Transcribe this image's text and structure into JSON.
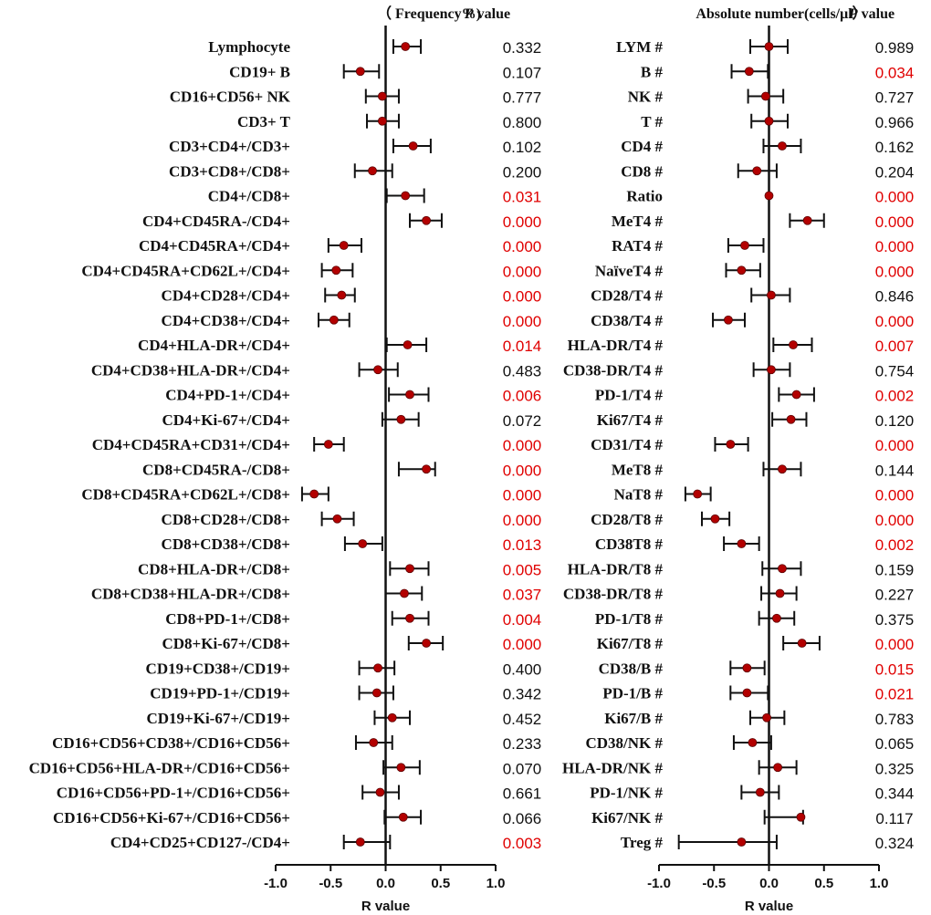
{
  "colors": {
    "point": "#b30000",
    "significant": "#e00000",
    "normal": "#111111",
    "line": "#111111"
  },
  "chart_data": [
    {
      "type": "forest",
      "title": "（ Frequency%)",
      "pvalue_header_p": "P",
      "pvalue_header_rest": " value",
      "xlabel": "R value",
      "xlim": [
        -1.0,
        1.0
      ],
      "ticks": [
        "-1.0",
        "-0.5",
        "0.0",
        "0.5",
        "1.0"
      ],
      "tick_values": [
        -1.0,
        -0.5,
        0.0,
        0.5,
        1.0
      ],
      "rows": [
        {
          "label": "Lymphocyte",
          "r": 0.18,
          "lo": 0.07,
          "hi": 0.32,
          "p": "0.332",
          "sig": false
        },
        {
          "label": "CD19+ B",
          "r": -0.23,
          "lo": -0.38,
          "hi": -0.06,
          "p": "0.107",
          "sig": false
        },
        {
          "label": "CD16+CD56+ NK",
          "r": -0.03,
          "lo": -0.18,
          "hi": 0.12,
          "p": "0.777",
          "sig": false
        },
        {
          "label": "CD3+ T",
          "r": -0.03,
          "lo": -0.17,
          "hi": 0.12,
          "p": "0.800",
          "sig": false
        },
        {
          "label": "CD3+CD4+/CD3+",
          "r": 0.25,
          "lo": 0.07,
          "hi": 0.41,
          "p": "0.102",
          "sig": false
        },
        {
          "label": "CD3+CD8+/CD8+",
          "r": -0.12,
          "lo": -0.28,
          "hi": 0.06,
          "p": "0.200",
          "sig": false
        },
        {
          "label": "CD4+/CD8+",
          "r": 0.18,
          "lo": 0.01,
          "hi": 0.35,
          "p": "0.031",
          "sig": true
        },
        {
          "label": "CD4+CD45RA-/CD4+",
          "r": 0.37,
          "lo": 0.22,
          "hi": 0.51,
          "p": "0.000",
          "sig": true
        },
        {
          "label": "CD4+CD45RA+/CD4+",
          "r": -0.38,
          "lo": -0.52,
          "hi": -0.22,
          "p": "0.000",
          "sig": true
        },
        {
          "label": "CD4+CD45RA+CD62L+/CD4+",
          "r": -0.45,
          "lo": -0.58,
          "hi": -0.3,
          "p": "0.000",
          "sig": true
        },
        {
          "label": "CD4+CD28+/CD4+",
          "r": -0.4,
          "lo": -0.55,
          "hi": -0.28,
          "p": "0.000",
          "sig": true
        },
        {
          "label": "CD4+CD38+/CD4+",
          "r": -0.47,
          "lo": -0.61,
          "hi": -0.33,
          "p": "0.000",
          "sig": true
        },
        {
          "label": "CD4+HLA-DR+/CD4+",
          "r": 0.2,
          "lo": 0.01,
          "hi": 0.37,
          "p": "0.014",
          "sig": true
        },
        {
          "label": "CD4+CD38+HLA-DR+/CD4+",
          "r": -0.07,
          "lo": -0.24,
          "hi": 0.11,
          "p": "0.483",
          "sig": false
        },
        {
          "label": "CD4+PD-1+/CD4+",
          "r": 0.22,
          "lo": 0.03,
          "hi": 0.39,
          "p": "0.006",
          "sig": true
        },
        {
          "label": "CD4+Ki-67+/CD4+",
          "r": 0.14,
          "lo": -0.03,
          "hi": 0.3,
          "p": "0.072",
          "sig": false
        },
        {
          "label": "CD4+CD45RA+CD31+/CD4+",
          "r": -0.52,
          "lo": -0.65,
          "hi": -0.38,
          "p": "0.000",
          "sig": true
        },
        {
          "label": "CD8+CD45RA-/CD8+",
          "r": 0.37,
          "lo": 0.12,
          "hi": 0.45,
          "p": "0.000",
          "sig": true
        },
        {
          "label": "CD8+CD45RA+CD62L+/CD8+",
          "r": -0.65,
          "lo": -0.76,
          "hi": -0.52,
          "p": "0.000",
          "sig": true
        },
        {
          "label": "CD8+CD28+/CD8+",
          "r": -0.44,
          "lo": -0.58,
          "hi": -0.29,
          "p": "0.000",
          "sig": true
        },
        {
          "label": "CD8+CD38+/CD8+",
          "r": -0.21,
          "lo": -0.37,
          "hi": -0.03,
          "p": "0.013",
          "sig": true
        },
        {
          "label": "CD8+HLA-DR+/CD8+",
          "r": 0.22,
          "lo": 0.04,
          "hi": 0.39,
          "p": "0.005",
          "sig": true
        },
        {
          "label": "CD8+CD38+HLA-DR+/CD8+",
          "r": 0.17,
          "lo": 0.0,
          "hi": 0.33,
          "p": "0.037",
          "sig": true
        },
        {
          "label": "CD8+PD-1+/CD8+",
          "r": 0.22,
          "lo": 0.06,
          "hi": 0.39,
          "p": "0.004",
          "sig": true
        },
        {
          "label": "CD8+Ki-67+/CD8+",
          "r": 0.37,
          "lo": 0.21,
          "hi": 0.52,
          "p": "0.000",
          "sig": true
        },
        {
          "label": "CD19+CD38+/CD19+",
          "r": -0.07,
          "lo": -0.24,
          "hi": 0.08,
          "p": "0.400",
          "sig": false
        },
        {
          "label": "CD19+PD-1+/CD19+",
          "r": -0.08,
          "lo": -0.24,
          "hi": 0.07,
          "p": "0.342",
          "sig": false
        },
        {
          "label": "CD19+Ki-67+/CD19+",
          "r": 0.06,
          "lo": -0.1,
          "hi": 0.22,
          "p": "0.452",
          "sig": false
        },
        {
          "label": "CD16+CD56+CD38+/CD16+CD56+",
          "r": -0.11,
          "lo": -0.27,
          "hi": 0.06,
          "p": "0.233",
          "sig": false
        },
        {
          "label": "CD16+CD56+HLA-DR+/CD16+CD56+",
          "r": 0.14,
          "lo": -0.02,
          "hi": 0.31,
          "p": "0.070",
          "sig": false
        },
        {
          "label": "CD16+CD56+PD-1+/CD16+CD56+",
          "r": -0.05,
          "lo": -0.21,
          "hi": 0.12,
          "p": "0.661",
          "sig": false
        },
        {
          "label": "CD16+CD56+Ki-67+/CD16+CD56+",
          "r": 0.16,
          "lo": -0.01,
          "hi": 0.32,
          "p": "0.066",
          "sig": false
        },
        {
          "label": "CD4+CD25+CD127-/CD4+",
          "r": -0.23,
          "lo": -0.38,
          "hi": 0.04,
          "p": "0.003",
          "sig": true
        }
      ]
    },
    {
      "type": "forest",
      "title": "Absolute number(cells/μl）",
      "pvalue_header_p": "P",
      "pvalue_header_rest": " value",
      "xlabel": "R value",
      "xlim": [
        -1.0,
        1.0
      ],
      "ticks": [
        "-1.0",
        "-0.5",
        "0.0",
        "0.5",
        "1.0"
      ],
      "tick_values": [
        -1.0,
        -0.5,
        0.0,
        0.5,
        1.0
      ],
      "rows": [
        {
          "label": "LYM #",
          "r": 0.0,
          "lo": -0.17,
          "hi": 0.17,
          "p": "0.989",
          "sig": false
        },
        {
          "label": "B #",
          "r": -0.18,
          "lo": -0.34,
          "hi": -0.01,
          "p": "0.034",
          "sig": true
        },
        {
          "label": "NK #",
          "r": -0.03,
          "lo": -0.19,
          "hi": 0.13,
          "p": "0.727",
          "sig": false
        },
        {
          "label": "T #",
          "r": 0.0,
          "lo": -0.16,
          "hi": 0.17,
          "p": "0.966",
          "sig": false
        },
        {
          "label": "CD4 #",
          "r": 0.12,
          "lo": -0.05,
          "hi": 0.29,
          "p": "0.162",
          "sig": false
        },
        {
          "label": "CD8 #",
          "r": -0.11,
          "lo": -0.28,
          "hi": 0.07,
          "p": "0.204",
          "sig": false
        },
        {
          "label": "Ratio",
          "r": 0.0,
          "lo": 0.0,
          "hi": 0.0,
          "p": "0.000",
          "sig": true
        },
        {
          "label": "MeT4 #",
          "r": 0.35,
          "lo": 0.19,
          "hi": 0.5,
          "p": "0.000",
          "sig": true
        },
        {
          "label": "RAT4 #",
          "r": -0.22,
          "lo": -0.37,
          "hi": -0.05,
          "p": "0.000",
          "sig": true
        },
        {
          "label": "NaïveT4 #",
          "r": -0.25,
          "lo": -0.39,
          "hi": -0.08,
          "p": "0.000",
          "sig": true
        },
        {
          "label": "CD28/T4 #",
          "r": 0.02,
          "lo": -0.16,
          "hi": 0.19,
          "p": "0.846",
          "sig": false
        },
        {
          "label": "CD38/T4 #",
          "r": -0.37,
          "lo": -0.51,
          "hi": -0.22,
          "p": "0.000",
          "sig": true
        },
        {
          "label": "HLA-DR/T4 #",
          "r": 0.22,
          "lo": 0.04,
          "hi": 0.39,
          "p": "0.007",
          "sig": true
        },
        {
          "label": "CD38-DR/T4 #",
          "r": 0.02,
          "lo": -0.14,
          "hi": 0.19,
          "p": "0.754",
          "sig": false
        },
        {
          "label": "PD-1/T4 #",
          "r": 0.25,
          "lo": 0.09,
          "hi": 0.41,
          "p": "0.002",
          "sig": true
        },
        {
          "label": "Ki67/T4 #",
          "r": 0.2,
          "lo": 0.03,
          "hi": 0.34,
          "p": "0.120",
          "sig": false
        },
        {
          "label": "CD31/T4 #",
          "r": -0.35,
          "lo": -0.49,
          "hi": -0.19,
          "p": "0.000",
          "sig": true
        },
        {
          "label": "MeT8 #",
          "r": 0.12,
          "lo": -0.05,
          "hi": 0.29,
          "p": "0.144",
          "sig": false
        },
        {
          "label": "NaT8 #",
          "r": -0.65,
          "lo": -0.76,
          "hi": -0.53,
          "p": "0.000",
          "sig": true
        },
        {
          "label": "CD28/T8 #",
          "r": -0.49,
          "lo": -0.61,
          "hi": -0.36,
          "p": "0.000",
          "sig": true
        },
        {
          "label": "CD38T8 #",
          "r": -0.25,
          "lo": -0.41,
          "hi": -0.09,
          "p": "0.002",
          "sig": true
        },
        {
          "label": "HLA-DR/T8 #",
          "r": 0.12,
          "lo": -0.06,
          "hi": 0.29,
          "p": "0.159",
          "sig": false
        },
        {
          "label": "CD38-DR/T8 #",
          "r": 0.1,
          "lo": -0.07,
          "hi": 0.25,
          "p": "0.227",
          "sig": false
        },
        {
          "label": "PD-1/T8 #",
          "r": 0.07,
          "lo": -0.09,
          "hi": 0.23,
          "p": "0.375",
          "sig": false
        },
        {
          "label": "Ki67/T8 #",
          "r": 0.3,
          "lo": 0.13,
          "hi": 0.46,
          "p": "0.000",
          "sig": true
        },
        {
          "label": "CD38/B #",
          "r": -0.2,
          "lo": -0.35,
          "hi": -0.04,
          "p": "0.015",
          "sig": true
        },
        {
          "label": "PD-1/B #",
          "r": -0.2,
          "lo": -0.35,
          "hi": -0.01,
          "p": "0.021",
          "sig": true
        },
        {
          "label": "Ki67/B #",
          "r": -0.02,
          "lo": -0.17,
          "hi": 0.14,
          "p": "0.783",
          "sig": false
        },
        {
          "label": "CD38/NK #",
          "r": -0.15,
          "lo": -0.32,
          "hi": 0.02,
          "p": "0.065",
          "sig": false
        },
        {
          "label": "HLA-DR/NK #",
          "r": 0.08,
          "lo": -0.09,
          "hi": 0.25,
          "p": "0.325",
          "sig": false
        },
        {
          "label": "PD-1/NK #",
          "r": -0.08,
          "lo": -0.25,
          "hi": 0.09,
          "p": "0.344",
          "sig": false
        },
        {
          "label": "Ki67/NK #",
          "r": 0.29,
          "lo": -0.04,
          "hi": 0.31,
          "p": "0.117",
          "sig": false
        },
        {
          "label": "Treg #",
          "r": -0.25,
          "lo": -0.82,
          "hi": 0.07,
          "p": "0.324",
          "sig": false
        }
      ]
    }
  ]
}
